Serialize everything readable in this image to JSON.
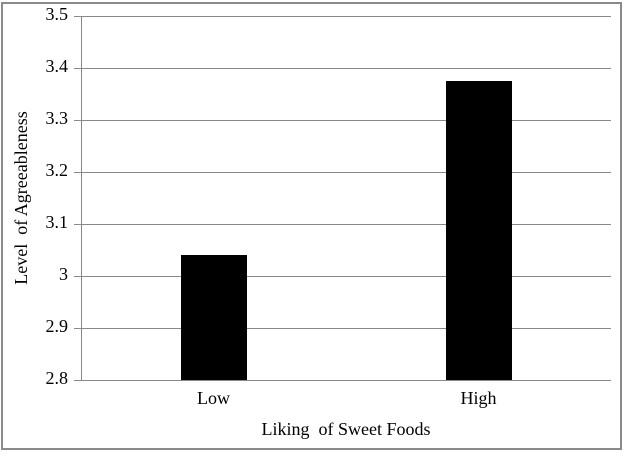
{
  "chart_data": {
    "type": "bar",
    "title": "",
    "categories": [
      "Low",
      "High"
    ],
    "values": [
      3.04,
      3.375
    ],
    "xlabel": "Liking  of Sweet Foods",
    "ylabel": "Level  of Agreeableness",
    "ylim": [
      2.8,
      3.5
    ],
    "ytick_step": 0.1,
    "ytick_labels": [
      "3.5",
      "3.4",
      "3.3",
      "3.2",
      "3.1",
      "3",
      "2.9",
      "2.8"
    ],
    "grid": true,
    "legend_position": "none",
    "colors": {
      "bar": "#000000",
      "gridline": "#898989",
      "axis": "#898989",
      "frame_border": "#8a8a8a",
      "text": "#000000",
      "background": "#ffffff"
    }
  }
}
